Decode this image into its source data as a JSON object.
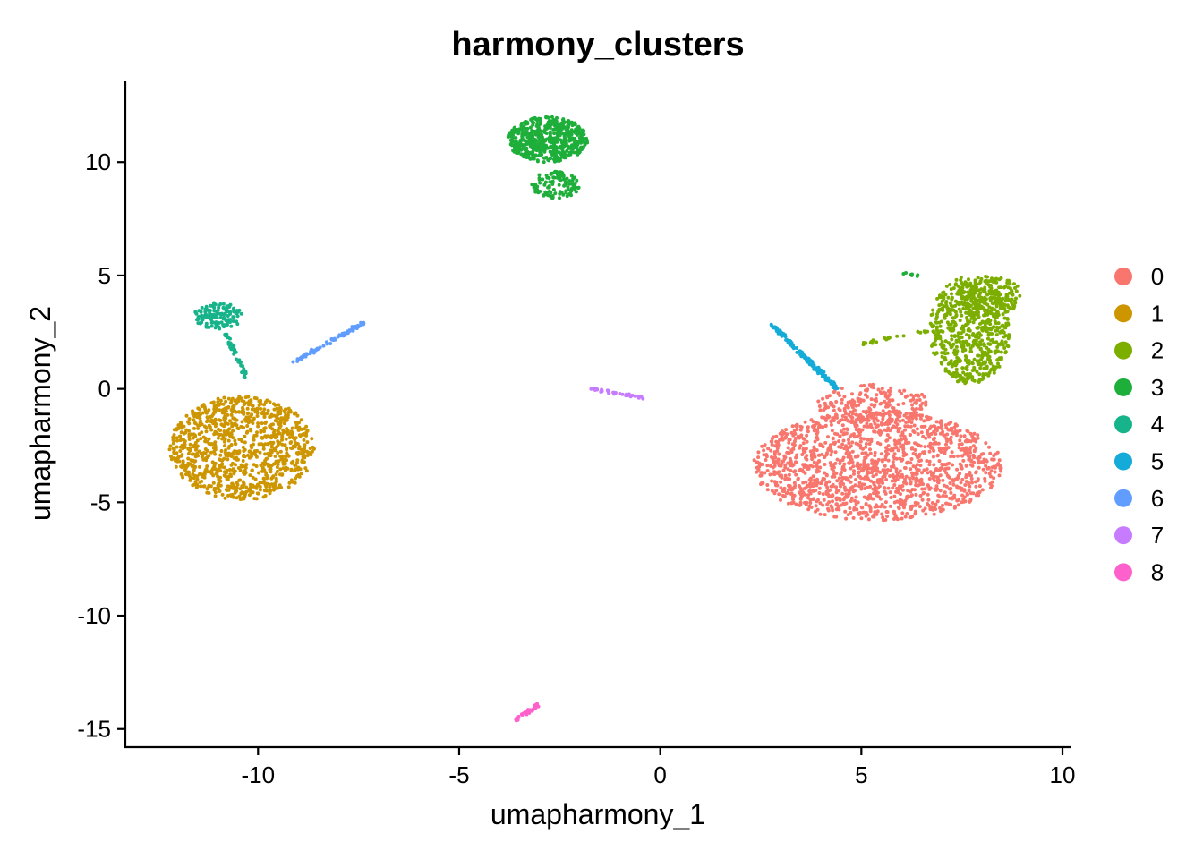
{
  "chart_data": {
    "type": "scatter",
    "title": "harmony_clusters",
    "xlabel": "umapharmony_1",
    "ylabel": "umapharmony_2",
    "xlim": [
      -13.3,
      10.2
    ],
    "ylim": [
      -15.8,
      13.6
    ],
    "x_ticks": [
      -10,
      -5,
      0,
      5,
      10
    ],
    "y_ticks": [
      -15,
      -10,
      -5,
      0,
      5,
      10
    ],
    "grid": false,
    "legend_position": "right",
    "series": [
      {
        "name": "0",
        "color": "#F8766D",
        "regions": [
          {
            "shape": "ellipse",
            "cx": 5.4,
            "cy": -3.4,
            "rx": 3.1,
            "ry": 2.4,
            "n": 1500
          },
          {
            "shape": "ellipse",
            "cx": 5.3,
            "cy": -0.7,
            "rx": 1.4,
            "ry": 0.9,
            "n": 200
          }
        ]
      },
      {
        "name": "1",
        "color": "#CD9600",
        "regions": [
          {
            "shape": "ellipse",
            "cx": -10.4,
            "cy": -2.6,
            "rx": 1.8,
            "ry": 2.3,
            "n": 1000
          }
        ]
      },
      {
        "name": "2",
        "color": "#7CAE00",
        "regions": [
          {
            "shape": "ellipse",
            "cx": 7.7,
            "cy": 2.6,
            "rx": 1.0,
            "ry": 2.4,
            "n": 650
          },
          {
            "shape": "ellipse",
            "cx": 8.2,
            "cy": 4.1,
            "rx": 0.8,
            "ry": 0.9,
            "n": 150
          },
          {
            "shape": "line",
            "x1": 5.0,
            "y1": 2.0,
            "x2": 6.8,
            "y2": 2.6,
            "n": 25
          }
        ]
      },
      {
        "name": "3",
        "color": "#00A9FF_unused",
        "regions": []
      },
      {
        "name": "4",
        "color": "#00BE67",
        "regions": []
      },
      {
        "name": "5",
        "color": "#00BFC4",
        "regions": []
      },
      {
        "name": "6",
        "color": "#619CFF",
        "regions": [
          {
            "shape": "line",
            "x1": -9.1,
            "y1": 1.2,
            "x2": -7.4,
            "y2": 2.9,
            "n": 80
          }
        ]
      },
      {
        "name": "7",
        "color": "#C77CFF",
        "regions": [
          {
            "shape": "line",
            "x1": -1.9,
            "y1": 0.05,
            "x2": -0.4,
            "y2": -0.4,
            "n": 40
          }
        ]
      },
      {
        "name": "8",
        "color": "#FF61CC",
        "regions": [
          {
            "shape": "line",
            "x1": -3.6,
            "y1": -14.6,
            "x2": -3.0,
            "y2": -13.9,
            "n": 30
          }
        ]
      }
    ],
    "extra_regions": {
      "3": [
        {
          "shape": "ellipse",
          "cx": -2.8,
          "cy": 11.0,
          "rx": 1.0,
          "ry": 1.0,
          "n": 550
        },
        {
          "shape": "ellipse",
          "cx": -2.6,
          "cy": 9.0,
          "rx": 0.6,
          "ry": 0.6,
          "n": 120
        },
        {
          "shape": "line",
          "x1": 6.0,
          "y1": 5.1,
          "x2": 6.4,
          "y2": 5.0,
          "n": 8
        }
      ],
      "4": [
        {
          "shape": "ellipse",
          "cx": -11.0,
          "cy": 3.2,
          "rx": 0.6,
          "ry": 0.6,
          "n": 130
        },
        {
          "shape": "line",
          "x1": -10.8,
          "y1": 2.4,
          "x2": -10.3,
          "y2": 0.5,
          "n": 40
        }
      ],
      "5": [
        {
          "shape": "line",
          "x1": 2.8,
          "y1": 2.8,
          "x2": 4.4,
          "y2": 0.0,
          "n": 160
        }
      ]
    },
    "legend_colors": [
      "#F8766D",
      "#CD9600",
      "#7CAE00",
      "#00BE67",
      "#00BFC4",
      "#00A9FF",
      "#619CFF",
      "#C77CFF",
      "#FF61CC"
    ],
    "legend_colors_note": "",
    "point_colors": {
      "3": "#1EAE3A",
      "4": "#17B38A",
      "5": "#14ABD8"
    }
  }
}
